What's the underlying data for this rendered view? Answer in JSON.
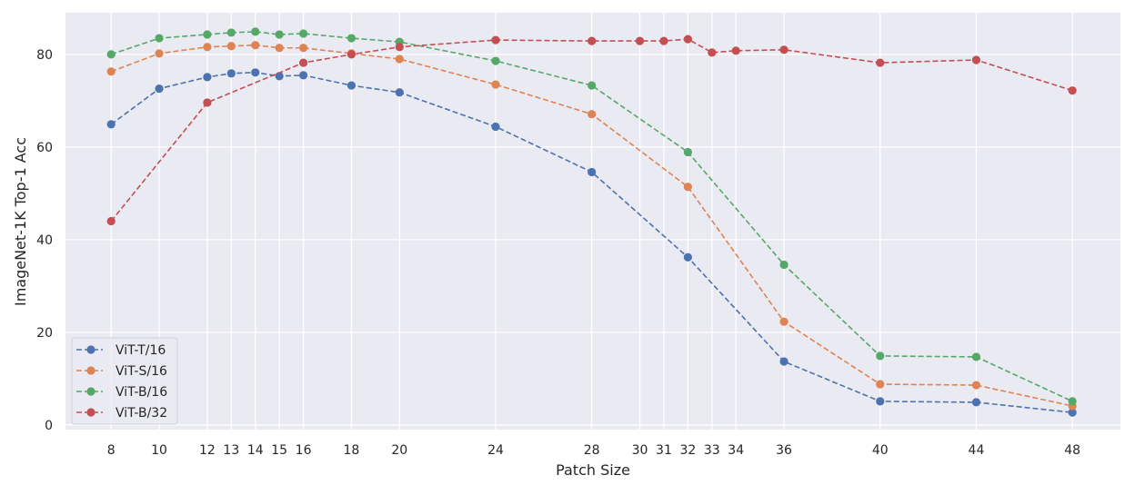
{
  "chart_data": {
    "type": "line",
    "xlabel": "Patch Size",
    "ylabel": "ImageNet-1K Top-1 Acc",
    "xticks": [
      8,
      10,
      12,
      13,
      14,
      15,
      16,
      18,
      20,
      24,
      28,
      30,
      31,
      32,
      33,
      34,
      36,
      40,
      44,
      48
    ],
    "yticks": [
      0,
      20,
      40,
      60,
      80
    ],
    "xlim": [
      6.1,
      50
    ],
    "ylim": [
      -1,
      89
    ],
    "grid": true,
    "legend_position": "lower-left",
    "background": "#eaeaf2",
    "series": [
      {
        "name": "ViT-T/16",
        "color": "#4c72b0",
        "x": [
          8,
          10,
          12,
          13,
          14,
          15,
          16,
          18,
          20,
          24,
          28,
          32,
          36,
          40,
          44,
          48
        ],
        "y": [
          64.9,
          72.6,
          75.1,
          75.9,
          76.1,
          75.3,
          75.5,
          73.3,
          71.8,
          64.4,
          54.6,
          36.2,
          13.7,
          5.1,
          4.9,
          2.7
        ]
      },
      {
        "name": "ViT-S/16",
        "color": "#dd8452",
        "x": [
          8,
          10,
          12,
          13,
          14,
          15,
          16,
          18,
          20,
          24,
          28,
          32,
          36,
          40,
          44,
          48
        ],
        "y": [
          76.3,
          80.2,
          81.6,
          81.8,
          82.0,
          81.4,
          81.4,
          80.2,
          79.0,
          73.5,
          67.1,
          51.4,
          22.3,
          8.8,
          8.6,
          4.1
        ]
      },
      {
        "name": "ViT-B/16",
        "color": "#55a868",
        "x": [
          8,
          10,
          12,
          13,
          14,
          15,
          16,
          18,
          20,
          24,
          28,
          32,
          36,
          40,
          44,
          48
        ],
        "y": [
          80.0,
          83.5,
          84.3,
          84.7,
          84.9,
          84.3,
          84.5,
          83.5,
          82.7,
          78.6,
          73.3,
          58.9,
          34.6,
          14.9,
          14.7,
          5.1
        ]
      },
      {
        "name": "ViT-B/32",
        "color": "#c44e52",
        "x": [
          8,
          12,
          16,
          18,
          20,
          24,
          28,
          30,
          31,
          32,
          33,
          34,
          36,
          40,
          44,
          48
        ],
        "y": [
          44.0,
          69.6,
          78.2,
          80.0,
          81.6,
          83.1,
          82.9,
          82.9,
          82.9,
          83.3,
          80.4,
          80.8,
          81.0,
          78.2,
          78.8,
          72.2
        ]
      }
    ]
  }
}
